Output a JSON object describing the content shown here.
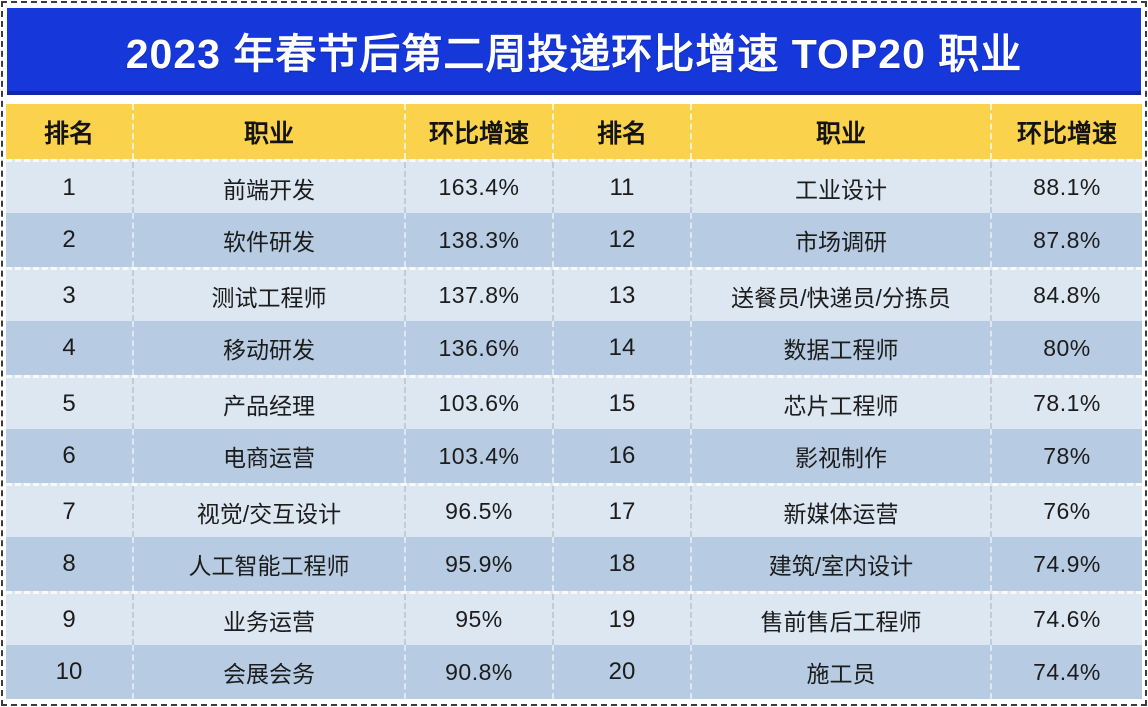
{
  "title": "2023 年春节后第二周投递环比增速 TOP20 职业",
  "headers": [
    "排名",
    "职业",
    "环比增速",
    "排名",
    "职业",
    "环比增速"
  ],
  "rows": [
    {
      "rank_l": "1",
      "job_l": "前端开发",
      "growth_l": "163.4%",
      "rank_r": "11",
      "job_r": "工业设计",
      "growth_r": "88.1%"
    },
    {
      "rank_l": "2",
      "job_l": "软件研发",
      "growth_l": "138.3%",
      "rank_r": "12",
      "job_r": "市场调研",
      "growth_r": "87.8%"
    },
    {
      "rank_l": "3",
      "job_l": "测试工程师",
      "growth_l": "137.8%",
      "rank_r": "13",
      "job_r": "送餐员/快递员/分拣员",
      "growth_r": "84.8%"
    },
    {
      "rank_l": "4",
      "job_l": "移动研发",
      "growth_l": "136.6%",
      "rank_r": "14",
      "job_r": "数据工程师",
      "growth_r": "80%"
    },
    {
      "rank_l": "5",
      "job_l": "产品经理",
      "growth_l": "103.6%",
      "rank_r": "15",
      "job_r": "芯片工程师",
      "growth_r": "78.1%"
    },
    {
      "rank_l": "6",
      "job_l": "电商运营",
      "growth_l": "103.4%",
      "rank_r": "16",
      "job_r": "影视制作",
      "growth_r": "78%"
    },
    {
      "rank_l": "7",
      "job_l": "视觉/交互设计",
      "growth_l": "96.5%",
      "rank_r": "17",
      "job_r": "新媒体运营",
      "growth_r": "76%"
    },
    {
      "rank_l": "8",
      "job_l": "人工智能工程师",
      "growth_l": "95.9%",
      "rank_r": "18",
      "job_r": "建筑/室内设计",
      "growth_r": "74.9%"
    },
    {
      "rank_l": "9",
      "job_l": "业务运营",
      "growth_l": "95%",
      "rank_r": "19",
      "job_r": "售前售后工程师",
      "growth_r": "74.6%"
    },
    {
      "rank_l": "10",
      "job_l": "会展会务",
      "growth_l": "90.8%",
      "rank_r": "20",
      "job_r": "施工员",
      "growth_r": "74.4%"
    }
  ],
  "colors": {
    "banner_bg": "#1637d9",
    "banner_edge": "#0e27a6",
    "title_color": "#ffffff",
    "header_bg": "#fbd24c",
    "row_light": "#dce7f2",
    "row_dark": "#b7cbe2"
  },
  "chart_data": {
    "type": "table",
    "title": "2023 年春节后第二周投递环比增速 TOP20 职业",
    "columns": [
      "排名",
      "职业",
      "环比增速"
    ],
    "rows": [
      [
        1,
        "前端开发",
        163.4
      ],
      [
        2,
        "软件研发",
        138.3
      ],
      [
        3,
        "测试工程师",
        137.8
      ],
      [
        4,
        "移动研发",
        136.6
      ],
      [
        5,
        "产品经理",
        103.6
      ],
      [
        6,
        "电商运营",
        103.4
      ],
      [
        7,
        "视觉/交互设计",
        96.5
      ],
      [
        8,
        "人工智能工程师",
        95.9
      ],
      [
        9,
        "业务运营",
        95.0
      ],
      [
        10,
        "会展会务",
        90.8
      ],
      [
        11,
        "工业设计",
        88.1
      ],
      [
        12,
        "市场调研",
        87.8
      ],
      [
        13,
        "送餐员/快递员/分拣员",
        84.8
      ],
      [
        14,
        "数据工程师",
        80.0
      ],
      [
        15,
        "芯片工程师",
        78.1
      ],
      [
        16,
        "影视制作",
        78.0
      ],
      [
        17,
        "新媒体运营",
        76.0
      ],
      [
        18,
        "建筑/室内设计",
        74.9
      ],
      [
        19,
        "售前售后工程师",
        74.6
      ],
      [
        20,
        "施工员",
        74.4
      ]
    ],
    "unit": "percent",
    "value_suffix": "%"
  }
}
